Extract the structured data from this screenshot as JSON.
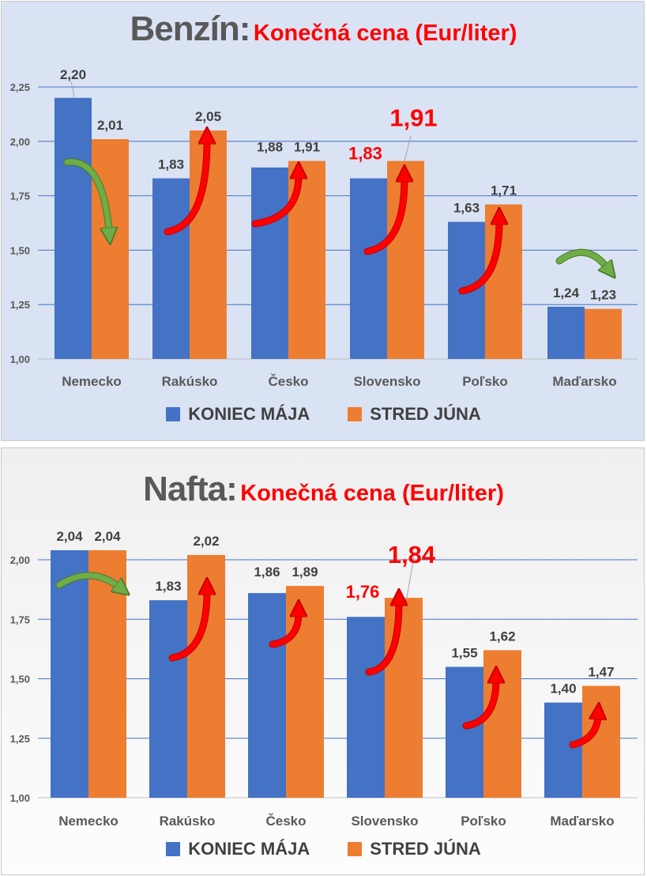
{
  "colors": {
    "series1": "#4472c4",
    "series2": "#ed7d31",
    "highlight": "#ff0000",
    "arrow_up": "#ff0000",
    "arrow_flat_down": "#70ad47",
    "text": "#404040",
    "grid": "#4472c4"
  },
  "chart_data": [
    {
      "type": "bar",
      "title": "Benzín:",
      "subtitle": "Konečná cena (Eur/liter)",
      "categories": [
        "Nemecko",
        "Rakúsko",
        "Česko",
        "Slovensko",
        "Poľsko",
        "Maďarsko"
      ],
      "series": [
        {
          "name": "KONIEC MÁJA",
          "values": [
            2.2,
            1.83,
            1.88,
            1.83,
            1.63,
            1.24
          ],
          "labels": [
            "2,20",
            "1,83",
            "1,88",
            "1,83",
            "1,63",
            "1,24"
          ]
        },
        {
          "name": "STRED JÚNA",
          "values": [
            2.01,
            2.05,
            1.91,
            1.91,
            1.71,
            1.23
          ],
          "labels": [
            "2,01",
            "2,05",
            "1,91",
            "1,91",
            "1,71",
            "1,23"
          ]
        }
      ],
      "ylim": [
        1.0,
        2.25
      ],
      "yticks": [
        "1,00",
        "1,25",
        "1,50",
        "1,75",
        "2,00",
        "2,25"
      ],
      "grid": true,
      "legend": "bottom",
      "highlight_category": "Slovensko",
      "trend_arrows": [
        "down",
        "up",
        "up",
        "up",
        "up",
        "flat"
      ]
    },
    {
      "type": "bar",
      "title": "Nafta:",
      "subtitle": "Konečná cena (Eur/liter)",
      "categories": [
        "Nemecko",
        "Rakúsko",
        "Česko",
        "Slovensko",
        "Poľsko",
        "Maďarsko"
      ],
      "series": [
        {
          "name": "KONIEC MÁJA",
          "values": [
            2.04,
            1.83,
            1.86,
            1.76,
            1.55,
            1.4
          ],
          "labels": [
            "2,04",
            "1,83",
            "1,86",
            "1,76",
            "1,55",
            "1,40"
          ]
        },
        {
          "name": "STRED JÚNA",
          "values": [
            2.04,
            2.02,
            1.89,
            1.84,
            1.62,
            1.47
          ],
          "labels": [
            "2,04",
            "2,02",
            "1,89",
            "1,84",
            "1,62",
            "1,47"
          ]
        }
      ],
      "ylim": [
        1.0,
        2.0
      ],
      "yticks": [
        "1,00",
        "1,25",
        "1,50",
        "1,75",
        "2,00"
      ],
      "grid": true,
      "legend": "bottom",
      "highlight_category": "Slovensko",
      "trend_arrows": [
        "flat",
        "up",
        "up",
        "up",
        "up",
        "up"
      ]
    }
  ]
}
